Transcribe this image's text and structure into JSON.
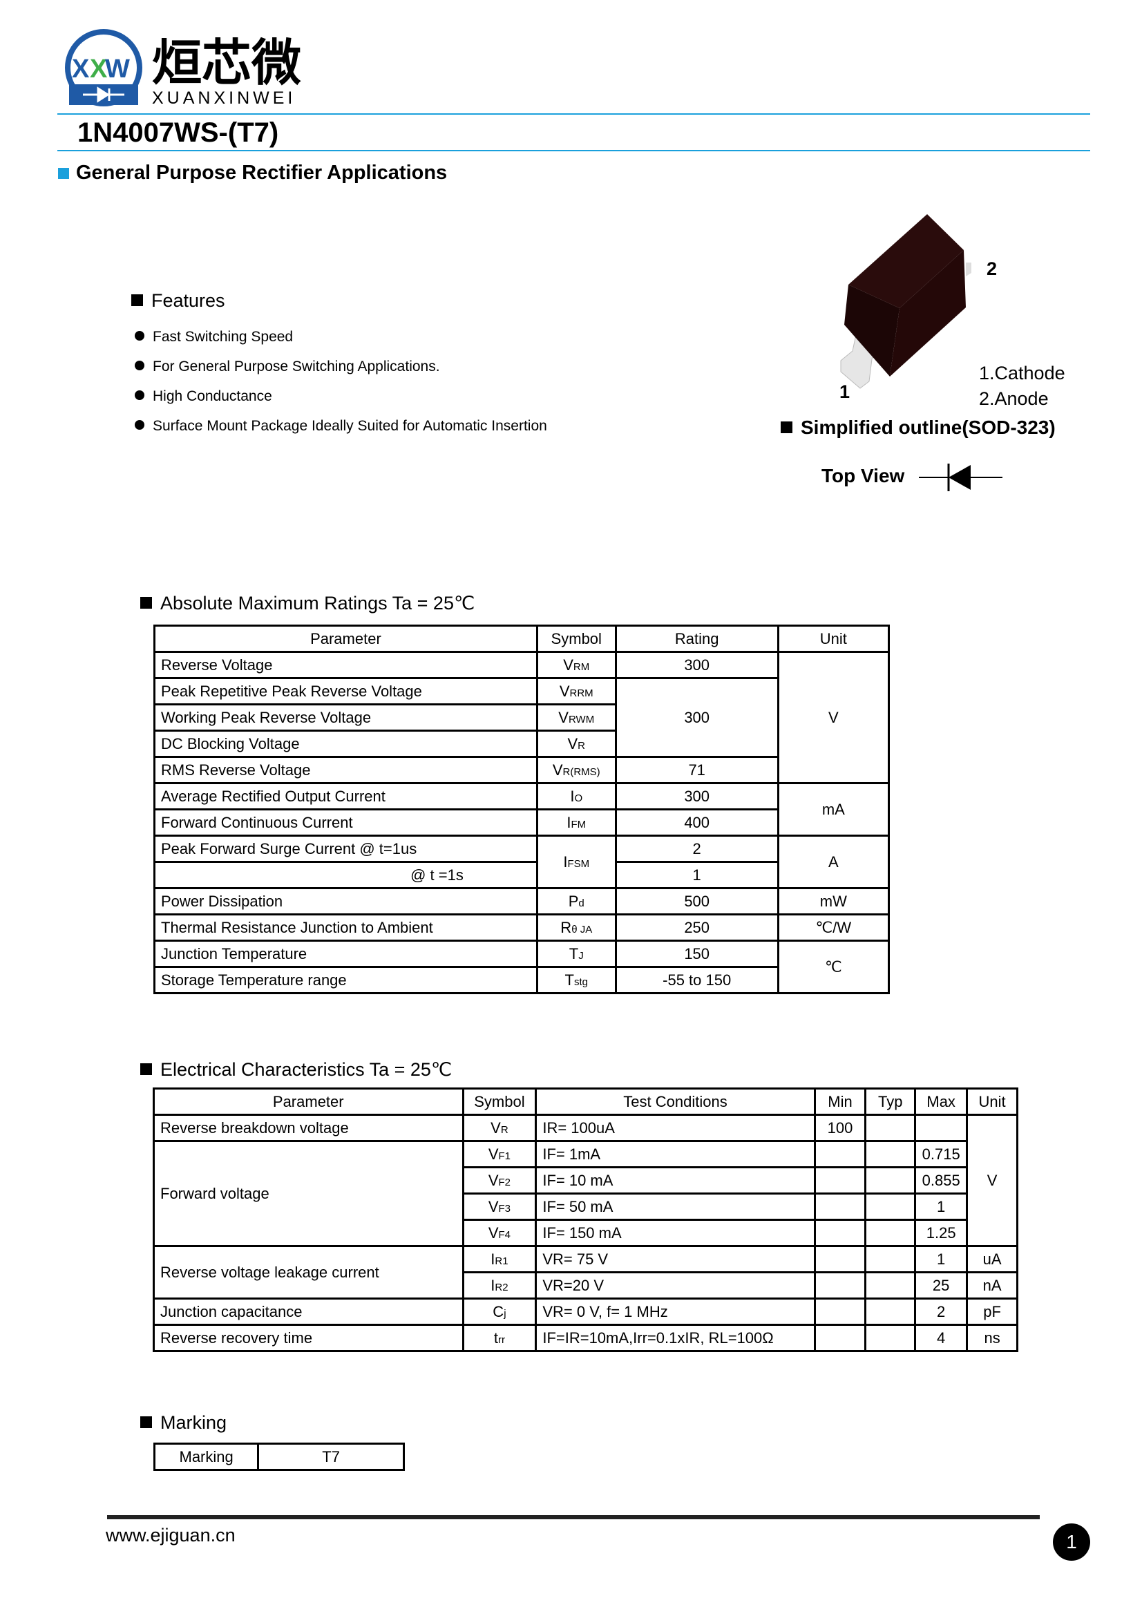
{
  "brand": {
    "logo_letters": "XXW",
    "name_cn": "烜芯微",
    "name_en": "XUANXINWEI",
    "colors": {
      "blue": "#1f5aa6",
      "green": "#3fae49",
      "accent_line": "#1aa0dc"
    }
  },
  "title": "1N4007WS-(T7)",
  "subtitle": "General Purpose Rectifier Applications",
  "features": {
    "heading": "Features",
    "items": [
      "Fast Switching Speed",
      "For General Purpose Switching Applications.",
      "High Conductance",
      "Surface Mount Package Ideally Suited for Automatic Insertion"
    ]
  },
  "package": {
    "pin1": "1",
    "pin2": "2",
    "pin1_label": "1.Cathode",
    "pin2_label": "2.Anode",
    "outline": "Simplified outline(SOD-323)",
    "top_view": "Top View"
  },
  "abs_max": {
    "heading": "Absolute Maximum Ratings Ta = 25℃",
    "headers": [
      "Parameter",
      "Symbol",
      "Rating",
      "Unit"
    ],
    "rows": [
      {
        "p": "Reverse  Voltage",
        "sym": "V",
        "sub": "RM",
        "r": "300",
        "u": "V"
      },
      {
        "p": "Peak Repetitive Peak Reverse Voltage",
        "sym": "V",
        "sub": "RRM",
        "r": "300"
      },
      {
        "p": "Working Peak Reverse Voltage",
        "sym": "V",
        "sub": "RWM"
      },
      {
        "p": "DC Blocking Voltage",
        "sym": "V",
        "sub": "R"
      },
      {
        "p": "RMS Reverse Voltage",
        "sym": "V",
        "sub": "R(RMS)",
        "r": "71"
      },
      {
        "p": "Average Rectified Output Current",
        "sym": "I",
        "sub": "O",
        "r": "300",
        "u": "mA"
      },
      {
        "p": "Forward Continuous Current",
        "sym": "I",
        "sub": "FM",
        "r": "400"
      },
      {
        "p": "Peak Forward Surge Current @  t=1us",
        "sym": "I",
        "sub": "FSM",
        "r": "2",
        "u": "A"
      },
      {
        "p": "@  t =1s",
        "r": "1"
      },
      {
        "p": "Power Dissipation",
        "sym": "P",
        "sub": "d",
        "r": "500",
        "u": "mW"
      },
      {
        "p": "Thermal Resistance Junction to Ambient",
        "sym": "R",
        "sub": "θ JA",
        "r": "250",
        "u": "℃/W"
      },
      {
        "p": "Junction Temperature",
        "sym": "T",
        "sub": "J",
        "r": "150",
        "u": "℃"
      },
      {
        "p": "Storage Temperature range",
        "sym": "T",
        "sub": "stg",
        "r": "-55 to 150"
      }
    ]
  },
  "elec": {
    "heading": "Electrical Characteristics Ta = 25℃",
    "headers": [
      "Parameter",
      "Symbol",
      "Test Conditions",
      "Min",
      "Typ",
      "Max",
      "Unit"
    ],
    "rows": [
      {
        "p": "Reverse breakdown voltage",
        "sym": "V",
        "sub": "R",
        "c": "IR= 100uA",
        "min": "100",
        "u": "V"
      },
      {
        "p": "Forward voltage",
        "sym": "V",
        "sub": "F1",
        "c": "IF= 1mA",
        "max": "0.715"
      },
      {
        "sym": "V",
        "sub": "F2",
        "c": "IF= 10 mA",
        "max": "0.855"
      },
      {
        "sym": "V",
        "sub": "F3",
        "c": "IF= 50 mA",
        "max": "1"
      },
      {
        "sym": "V",
        "sub": "F4",
        "c": "IF= 150 mA",
        "max": "1.25"
      },
      {
        "p": "Reverse voltage leakage current",
        "sym": "I",
        "sub": "R1",
        "c": "VR= 75 V",
        "max": "1",
        "u": "uA"
      },
      {
        "sym": "I",
        "sub": "R2",
        "c": "VR=20 V",
        "max": "25",
        "u": "nA"
      },
      {
        "p": "Junction  capacitance",
        "sym": "C",
        "sub": "j",
        "c": "VR= 0 V, f= 1 MHz",
        "max": "2",
        "u": "pF"
      },
      {
        "p": "Reverse recovery time",
        "sym": "t",
        "sub": "rr",
        "c": "IF=IR=10mA,Irr=0.1xIR, RL=100Ω",
        "max": "4",
        "u": "ns"
      }
    ]
  },
  "marking": {
    "heading": "Marking",
    "label": "Marking",
    "value": "T7"
  },
  "footer": {
    "url": "www.ejiguan.cn",
    "page": "1"
  }
}
